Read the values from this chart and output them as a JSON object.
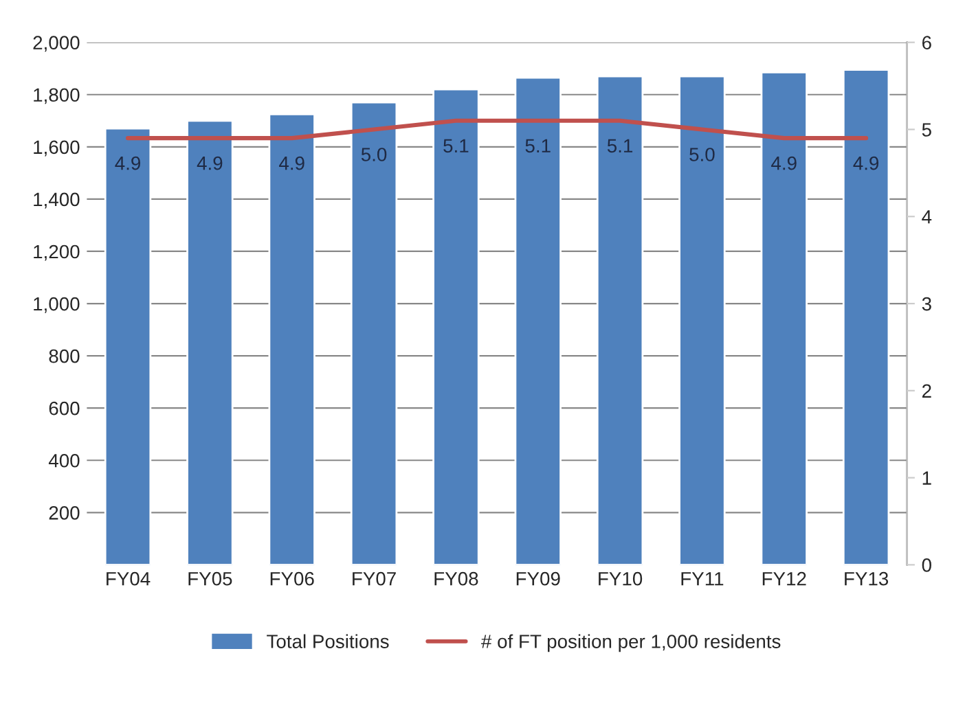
{
  "chart_data": {
    "type": "bar",
    "categories": [
      "FY04",
      "FY05",
      "FY06",
      "FY07",
      "FY08",
      "FY09",
      "FY10",
      "FY11",
      "FY12",
      "FY13"
    ],
    "series": [
      {
        "name": "Total Positions",
        "color": "#4f81bd",
        "values": [
          1670,
          1700,
          1725,
          1770,
          1820,
          1865,
          1870,
          1870,
          1885,
          1895
        ]
      },
      {
        "name": "# of FT position per 1,000 residents",
        "type": "line",
        "axis": "y2",
        "color": "#c0504d",
        "values": [
          4.9,
          4.9,
          4.9,
          5.0,
          5.1,
          5.1,
          5.1,
          5.0,
          4.9,
          4.9
        ],
        "value_labels": [
          "4.9",
          "4.9",
          "4.9",
          "5.0",
          "5.1",
          "5.1",
          "5.1",
          "5.0",
          "4.9",
          "4.9"
        ]
      }
    ],
    "ylim": [
      0,
      2000
    ],
    "yticks": [
      {
        "value": 200,
        "label": "200"
      },
      {
        "value": 400,
        "label": "400"
      },
      {
        "value": 600,
        "label": "600"
      },
      {
        "value": 800,
        "label": "800"
      },
      {
        "value": 1000,
        "label": "1,000"
      },
      {
        "value": 1200,
        "label": "1,200"
      },
      {
        "value": 1400,
        "label": "1,400"
      },
      {
        "value": 1600,
        "label": "1,600"
      },
      {
        "value": 1800,
        "label": "1,800"
      },
      {
        "value": 2000,
        "label": "2,000"
      }
    ],
    "y2lim": [
      0,
      6
    ],
    "y2ticks": [
      0,
      1,
      2,
      3,
      4,
      5,
      6
    ],
    "grid": "y",
    "legend": "bottom",
    "marker": "none",
    "line_style": "solid"
  }
}
